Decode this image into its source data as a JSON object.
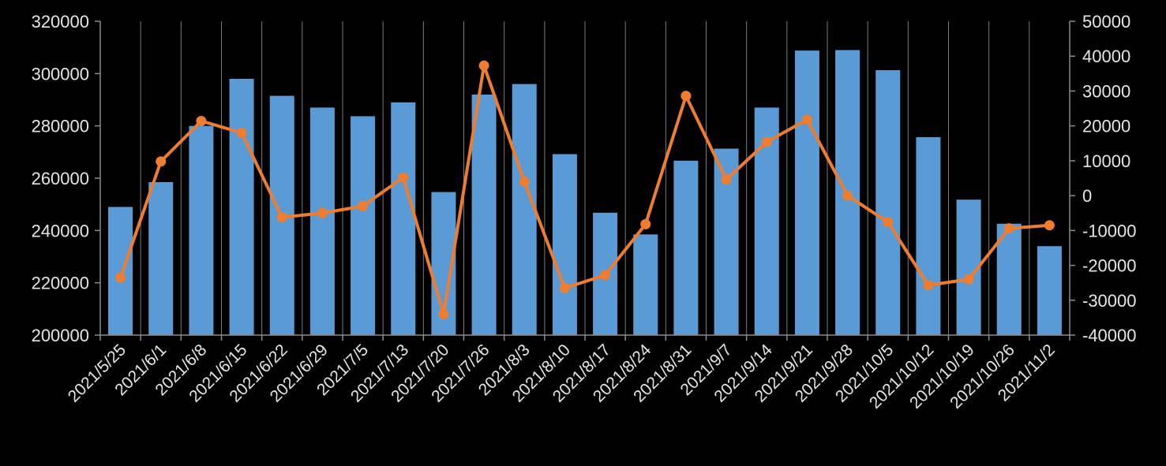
{
  "chart_data": {
    "type": "bar+line",
    "categories": [
      "2021/5/25",
      "2021/6/1",
      "2021/6/8",
      "2021/6/15",
      "2021/6/22",
      "2021/6/29",
      "2021/7/5",
      "2021/7/13",
      "2021/7/20",
      "2021/7/26",
      "2021/8/3",
      "2021/8/10",
      "2021/8/17",
      "2021/8/24",
      "2021/8/31",
      "2021/9/7",
      "2021/9/14",
      "2021/9/21",
      "2021/9/28",
      "2021/10/5",
      "2021/10/12",
      "2021/10/19",
      "2021/10/26",
      "2021/11/2"
    ],
    "series": [
      {
        "type": "bar",
        "axis": "left",
        "color": "#5b9bd5",
        "values": [
          249000,
          258500,
          280000,
          298000,
          291500,
          287000,
          283700,
          289000,
          254700,
          292000,
          296000,
          269200,
          246800,
          238500,
          266700,
          271300,
          287000,
          308800,
          309000,
          301300,
          275700,
          251800,
          242600,
          234000
        ]
      },
      {
        "type": "line",
        "axis": "right",
        "color": "#ed7d31",
        "values": [
          -23500,
          9800,
          21400,
          18000,
          -6200,
          -5000,
          -3000,
          5200,
          -34000,
          37300,
          4000,
          -26500,
          -22800,
          -8200,
          28600,
          4600,
          15400,
          21800,
          0,
          -7600,
          -25700,
          -24000,
          -9400,
          -8500
        ]
      }
    ],
    "y_left": {
      "min": 200000,
      "max": 320000,
      "ticks": [
        200000,
        220000,
        240000,
        260000,
        280000,
        300000,
        320000
      ]
    },
    "y_right": {
      "min": -40000,
      "max": 50000,
      "ticks": [
        -40000,
        -30000,
        -20000,
        -10000,
        0,
        10000,
        20000,
        30000,
        40000,
        50000
      ]
    },
    "grid": "vertical",
    "legend": "none"
  }
}
